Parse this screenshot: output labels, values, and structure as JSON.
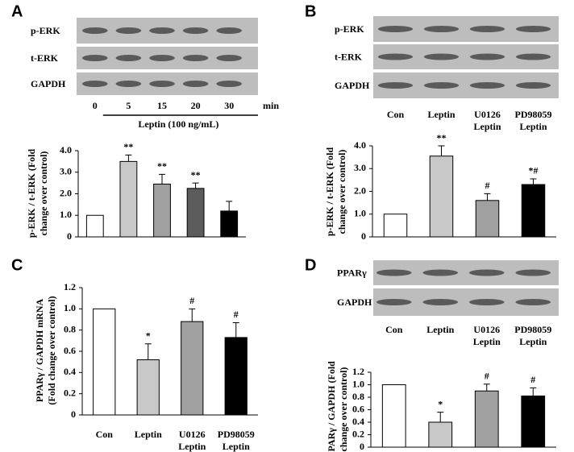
{
  "chart_data": [
    {
      "type": "bar",
      "panel": "A",
      "blot_labels": [
        "p-ERK",
        "t-ERK",
        "GAPDH"
      ],
      "categories": [
        [
          "0"
        ],
        [
          "5"
        ],
        [
          "15"
        ],
        [
          "20"
        ],
        [
          "30"
        ]
      ],
      "x_unit": "min",
      "treatment": "Leptin (100 ng/mL)",
      "ylabel": [
        "p-ERK / t-ERK (Fold",
        "change over control)"
      ],
      "values": [
        1.0,
        3.5,
        2.45,
        2.25,
        1.2
      ],
      "errors": [
        0,
        0.3,
        0.45,
        0.25,
        0.45
      ],
      "annotations": [
        null,
        "**",
        "**",
        "**",
        null
      ],
      "colors": [
        "#ffffff",
        "#c8c8c8",
        "#a0a0a0",
        "#5c5c5c",
        "#000000"
      ],
      "ylim": [
        0,
        4
      ],
      "yticks": [
        0,
        {
          "value": 1,
          "label": "1.0"
        },
        {
          "value": 2,
          "label": "2.0"
        },
        {
          "value": 3,
          "label": "3.0"
        },
        {
          "value": 4,
          "label": "4.0"
        }
      ]
    },
    {
      "type": "bar",
      "panel": "B",
      "blot_labels": [
        "p-ERK",
        "t-ERK",
        "GAPDH"
      ],
      "categories": [
        [
          "Con"
        ],
        [
          "Leptin"
        ],
        [
          "U0126",
          "Leptin"
        ],
        [
          "PD98059",
          "Leptin"
        ]
      ],
      "ylabel": [
        "p-ERK / t-ERK (Fold",
        "change over control)"
      ],
      "values": [
        1.0,
        3.55,
        1.6,
        2.3
      ],
      "errors": [
        0,
        0.45,
        0.3,
        0.25
      ],
      "annotations": [
        null,
        "**",
        "#",
        "*#"
      ],
      "colors": [
        "#ffffff",
        "#c8c8c8",
        "#a0a0a0",
        "#000000"
      ],
      "ylim": [
        0,
        4
      ],
      "yticks": [
        0,
        {
          "value": 1,
          "label": "1.0"
        },
        {
          "value": 2,
          "label": "2.0"
        },
        {
          "value": 3,
          "label": "3.0"
        },
        {
          "value": 4,
          "label": "4.0"
        }
      ]
    },
    {
      "type": "bar",
      "panel": "C",
      "categories": [
        [
          "Con"
        ],
        [
          "Leptin"
        ],
        [
          "U0126",
          "Leptin"
        ],
        [
          "PD98059",
          "Leptin"
        ]
      ],
      "ylabel": [
        "PPARγ / GAPDH mRNA",
        "(Fold change over control)"
      ],
      "values": [
        1.0,
        0.52,
        0.88,
        0.73
      ],
      "errors": [
        0,
        0.15,
        0.12,
        0.14
      ],
      "annotations": [
        null,
        "*",
        "#",
        "#"
      ],
      "colors": [
        "#ffffff",
        "#c8c8c8",
        "#a0a0a0",
        "#000000"
      ],
      "ylim": [
        0,
        1.2
      ],
      "yticks": [
        0,
        0.2,
        0.4,
        0.6,
        0.8,
        {
          "value": 1,
          "label": "1.0"
        },
        1.2
      ]
    },
    {
      "type": "bar",
      "panel": "D",
      "blot_labels": [
        "PPARγ",
        "GAPDH"
      ],
      "categories": [
        [
          "Con"
        ],
        [
          "Leptin"
        ],
        [
          "U0126",
          "Leptin"
        ],
        [
          "PD98059",
          "Leptin"
        ]
      ],
      "ylabel": [
        "PPARγ / GAPDH (Fold",
        "change over control)"
      ],
      "values": [
        1.0,
        0.4,
        0.9,
        0.82
      ],
      "errors": [
        0,
        0.16,
        0.11,
        0.13
      ],
      "annotations": [
        null,
        "*",
        "#",
        "#"
      ],
      "colors": [
        "#ffffff",
        "#c8c8c8",
        "#a0a0a0",
        "#000000"
      ],
      "ylim": [
        0,
        1.2
      ],
      "yticks": [
        0,
        0.2,
        0.4,
        0.6,
        0.8,
        {
          "value": 1,
          "label": "1.0"
        },
        1.2
      ]
    }
  ]
}
